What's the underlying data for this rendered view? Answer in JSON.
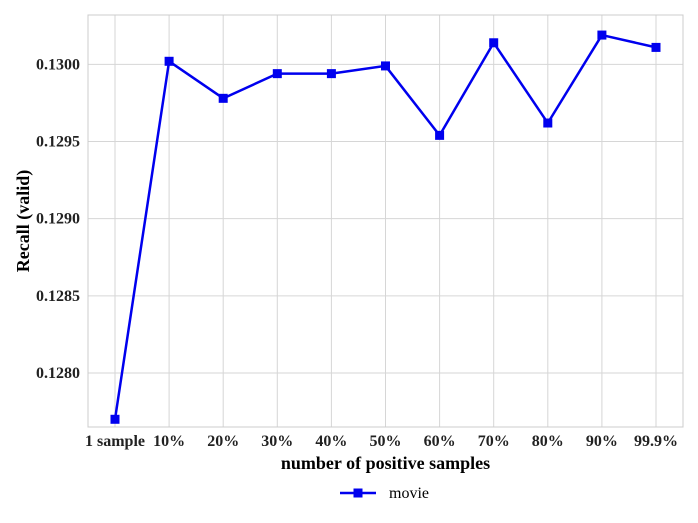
{
  "chart_data": {
    "type": "line",
    "title": "",
    "xlabel": "number of positive samples",
    "ylabel": "Recall (valid)",
    "categories": [
      "1 sample",
      "10%",
      "20%",
      "30%",
      "40%",
      "50%",
      "60%",
      "70%",
      "80%",
      "90%",
      "99.9%"
    ],
    "y_ticks": [
      "0.1280",
      "0.1285",
      "0.1290",
      "0.1295",
      "0.1300"
    ],
    "ylim": [
      0.12765,
      0.13032
    ],
    "grid": true,
    "legend_position": "bottom-center",
    "series": [
      {
        "name": "movie",
        "color": "#0000ee",
        "marker": "square",
        "values": [
          0.1277,
          0.13002,
          0.12978,
          0.12994,
          0.12994,
          0.12999,
          0.12954,
          0.13014,
          0.12962,
          0.13019,
          0.13011
        ]
      }
    ]
  }
}
